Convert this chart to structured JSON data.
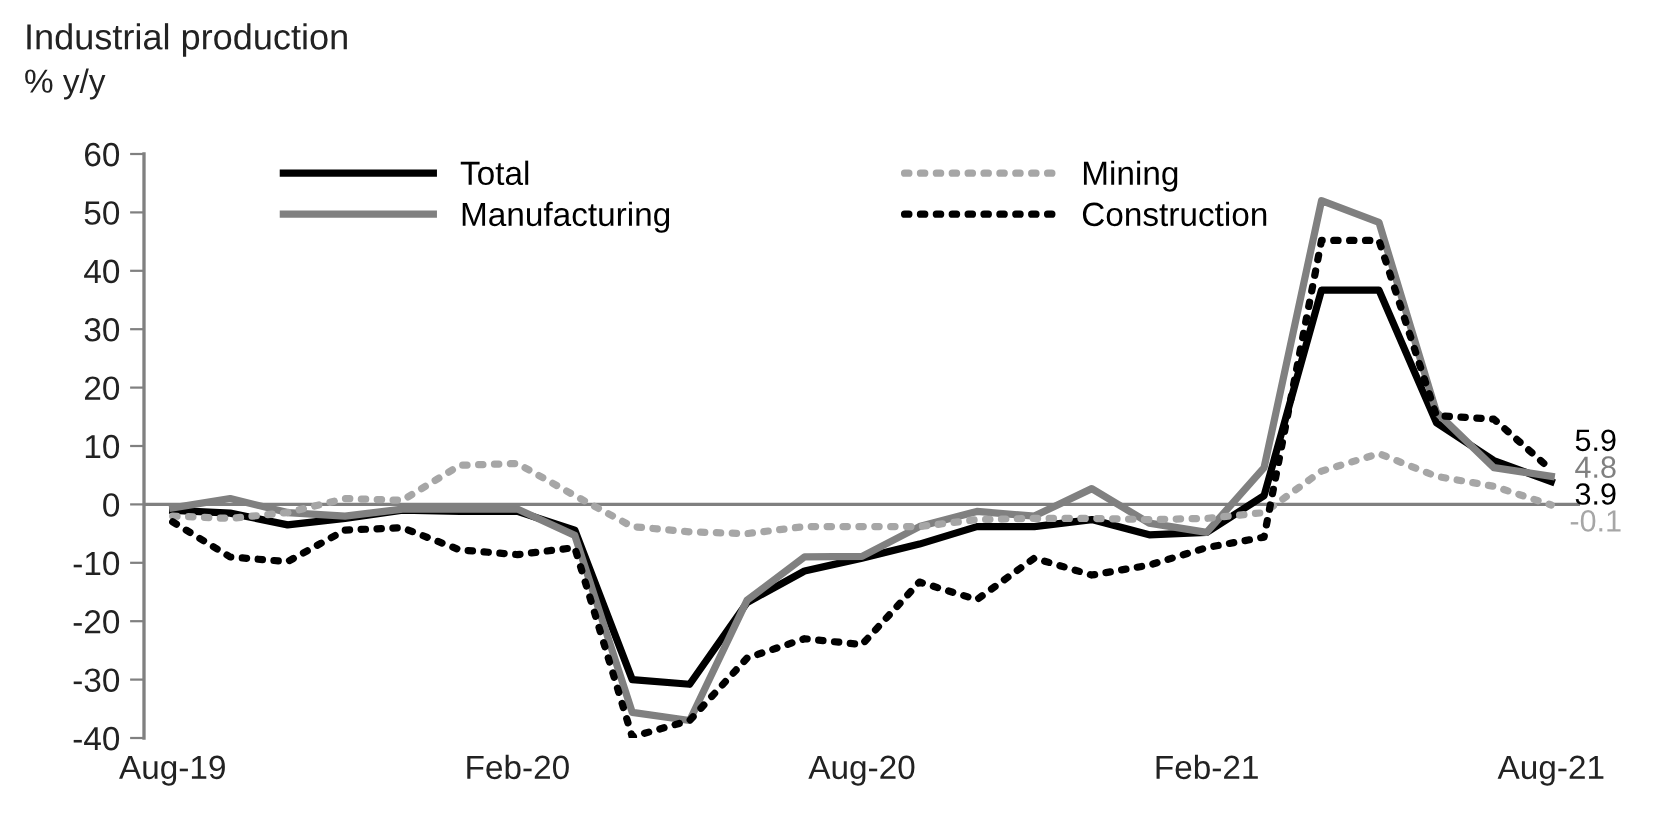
{
  "chart_data": {
    "type": "line",
    "title": "Industrial production",
    "subtitle": "% y/y",
    "categories": [
      "Aug-19",
      null,
      null,
      null,
      null,
      null,
      "Feb-20",
      null,
      null,
      null,
      null,
      null,
      "Aug-20",
      null,
      null,
      null,
      null,
      null,
      "Feb-21",
      null,
      null,
      null,
      null,
      null,
      "Aug-21"
    ],
    "ylim": [
      -40,
      60
    ],
    "yticks": [
      -40,
      -30,
      -20,
      -10,
      0,
      10,
      20,
      30,
      40,
      50,
      60
    ],
    "grid": false,
    "legend": "top",
    "ref_lines": [
      {
        "axis": "y",
        "value": 0,
        "color": "#808080"
      }
    ],
    "series": [
      {
        "name": "Total",
        "color": "#000000",
        "line_style": "solid",
        "values": [
          -1,
          -1.5,
          -3.5,
          -2.4,
          -1,
          -1.2,
          -1.2,
          -4.4,
          -30,
          -30.8,
          -16.8,
          -11.4,
          -9.2,
          -6.8,
          -3.8,
          -3.8,
          -2.6,
          -5.2,
          -4.8,
          1.5,
          36.7,
          36.7,
          14,
          7.5,
          3.9
        ],
        "value_labels": [
          null,
          null,
          null,
          null,
          null,
          null,
          null,
          null,
          null,
          null,
          null,
          null,
          null,
          null,
          null,
          null,
          null,
          null,
          null,
          null,
          null,
          null,
          null,
          null,
          "3.9"
        ]
      },
      {
        "name": "Manufacturing",
        "color": "#808080",
        "line_style": "solid",
        "values": [
          -0.6,
          1,
          -1.4,
          -2,
          -0.8,
          -0.8,
          -0.8,
          -5.3,
          -35.6,
          -37,
          -16.4,
          -9,
          -8.9,
          -3.8,
          -1.2,
          -2,
          2.7,
          -3.2,
          -4.8,
          6.3,
          52,
          48.3,
          15.8,
          6.3,
          4.8
        ],
        "value_labels": [
          null,
          null,
          null,
          null,
          null,
          null,
          null,
          null,
          null,
          null,
          null,
          null,
          null,
          null,
          null,
          null,
          null,
          null,
          null,
          null,
          null,
          null,
          null,
          null,
          "4.8"
        ]
      },
      {
        "name": "Mining",
        "color": "#a6a6a6",
        "line_style": "dotted",
        "values": [
          -2,
          -2.4,
          -1.4,
          1,
          0.7,
          6.7,
          7,
          1.5,
          -3.8,
          -4.7,
          -5,
          -3.8,
          -3.8,
          -3.8,
          -2.6,
          -2.4,
          -2.4,
          -2.6,
          -2.4,
          -1.4,
          5.7,
          8.7,
          4.8,
          3.1,
          -0.1
        ],
        "value_labels": [
          null,
          null,
          null,
          null,
          null,
          null,
          null,
          null,
          null,
          null,
          null,
          null,
          null,
          null,
          null,
          null,
          null,
          null,
          null,
          null,
          null,
          null,
          null,
          null,
          "-0.1"
        ]
      },
      {
        "name": "Construction",
        "color": "#000000",
        "line_style": "dotted",
        "values": [
          -3,
          -9,
          -9.8,
          -4.4,
          -4,
          -7.8,
          -8.6,
          -7.4,
          -39.8,
          -37,
          -26.3,
          -23,
          -24,
          -13.3,
          -16.3,
          -9.2,
          -12.1,
          -10.4,
          -7.4,
          -5.6,
          45.2,
          45.2,
          15.2,
          14.6,
          5.9
        ],
        "value_labels": [
          null,
          null,
          null,
          null,
          null,
          null,
          null,
          null,
          null,
          null,
          null,
          null,
          null,
          null,
          null,
          null,
          null,
          null,
          null,
          null,
          null,
          null,
          null,
          null,
          "5.9"
        ]
      }
    ]
  }
}
